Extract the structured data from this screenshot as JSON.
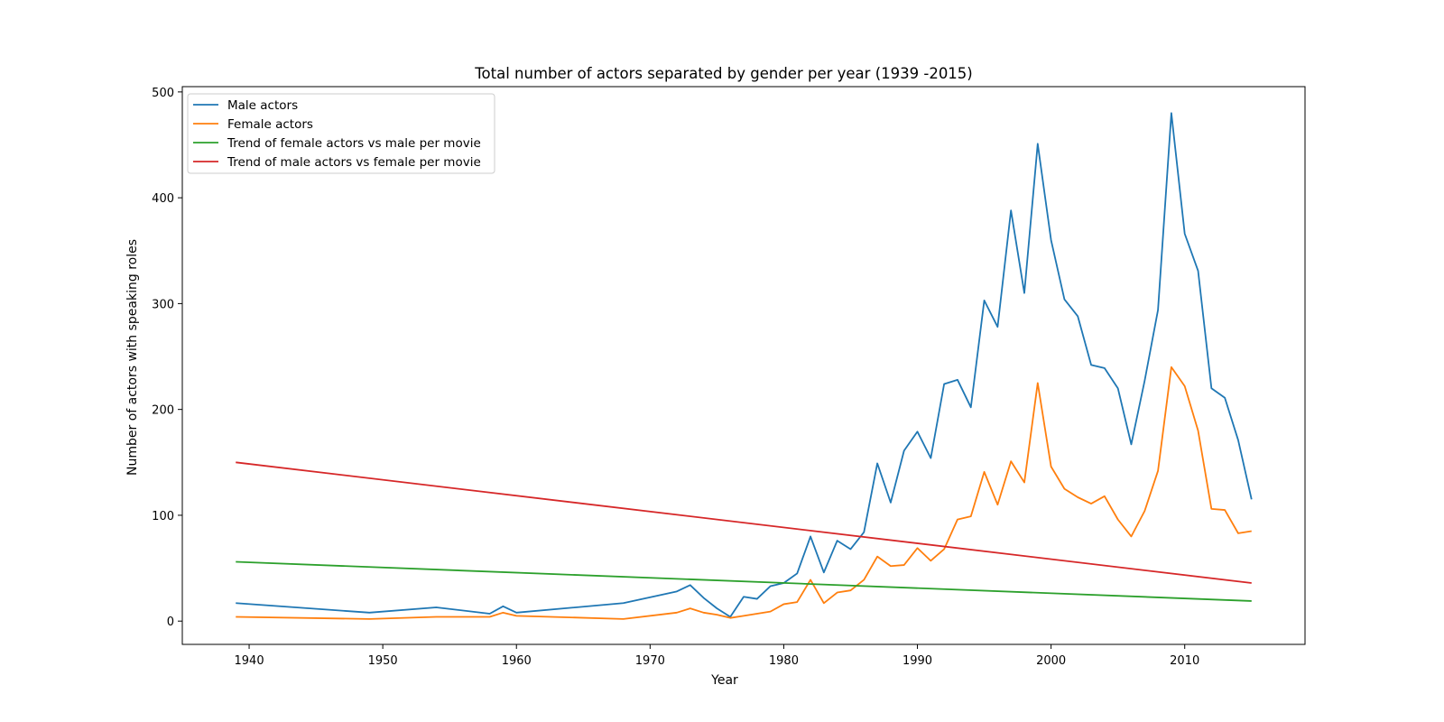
{
  "chart_data": {
    "type": "line",
    "title": "Total number of actors separated by gender per year (1939 -2015)",
    "xlabel": "Year",
    "ylabel": "Number of actors with speaking roles",
    "xlim": [
      1935,
      2019
    ],
    "ylim": [
      -22,
      505
    ],
    "xticks": [
      1940,
      1950,
      1960,
      1970,
      1980,
      1990,
      2000,
      2010
    ],
    "yticks": [
      0,
      100,
      200,
      300,
      400,
      500
    ],
    "grid": false,
    "legend_position": "upper-left",
    "series": [
      {
        "name": " Male actors",
        "color": "#1f77b4",
        "points": [
          [
            1939,
            17
          ],
          [
            1949,
            8
          ],
          [
            1954,
            13
          ],
          [
            1958,
            7
          ],
          [
            1959,
            14
          ],
          [
            1960,
            8
          ],
          [
            1968,
            17
          ],
          [
            1972,
            28
          ],
          [
            1973,
            34
          ],
          [
            1974,
            22
          ],
          [
            1975,
            12
          ],
          [
            1976,
            4
          ],
          [
            1977,
            23
          ],
          [
            1978,
            21
          ],
          [
            1979,
            33
          ],
          [
            1980,
            36
          ],
          [
            1981,
            45
          ],
          [
            1982,
            80
          ],
          [
            1983,
            46
          ],
          [
            1984,
            76
          ],
          [
            1985,
            68
          ],
          [
            1986,
            84
          ],
          [
            1987,
            149
          ],
          [
            1988,
            112
          ],
          [
            1989,
            161
          ],
          [
            1990,
            179
          ],
          [
            1991,
            154
          ],
          [
            1992,
            224
          ],
          [
            1993,
            228
          ],
          [
            1994,
            202
          ],
          [
            1995,
            303
          ],
          [
            1996,
            278
          ],
          [
            1997,
            388
          ],
          [
            1998,
            310
          ],
          [
            1999,
            451
          ],
          [
            2000,
            360
          ],
          [
            2001,
            304
          ],
          [
            2002,
            288
          ],
          [
            2003,
            242
          ],
          [
            2004,
            239
          ],
          [
            2005,
            220
          ],
          [
            2006,
            167
          ],
          [
            2007,
            227
          ],
          [
            2008,
            294
          ],
          [
            2009,
            480
          ],
          [
            2010,
            366
          ],
          [
            2011,
            331
          ],
          [
            2012,
            220
          ],
          [
            2013,
            211
          ],
          [
            2014,
            171
          ],
          [
            2015,
            115
          ]
        ]
      },
      {
        "name": " Female actors",
        "color": "#ff7f0e",
        "points": [
          [
            1939,
            4
          ],
          [
            1949,
            2
          ],
          [
            1954,
            4
          ],
          [
            1958,
            4
          ],
          [
            1959,
            8
          ],
          [
            1960,
            5
          ],
          [
            1968,
            2
          ],
          [
            1972,
            8
          ],
          [
            1973,
            12
          ],
          [
            1974,
            8
          ],
          [
            1975,
            6
          ],
          [
            1976,
            3
          ],
          [
            1977,
            5
          ],
          [
            1978,
            7
          ],
          [
            1979,
            9
          ],
          [
            1980,
            16
          ],
          [
            1981,
            18
          ],
          [
            1982,
            39
          ],
          [
            1983,
            17
          ],
          [
            1984,
            27
          ],
          [
            1985,
            29
          ],
          [
            1986,
            39
          ],
          [
            1987,
            61
          ],
          [
            1988,
            52
          ],
          [
            1989,
            53
          ],
          [
            1990,
            69
          ],
          [
            1991,
            57
          ],
          [
            1992,
            68
          ],
          [
            1993,
            96
          ],
          [
            1994,
            99
          ],
          [
            1995,
            141
          ],
          [
            1996,
            110
          ],
          [
            1997,
            151
          ],
          [
            1998,
            131
          ],
          [
            1999,
            225
          ],
          [
            2000,
            146
          ],
          [
            2001,
            125
          ],
          [
            2002,
            117
          ],
          [
            2003,
            111
          ],
          [
            2004,
            118
          ],
          [
            2005,
            96
          ],
          [
            2006,
            80
          ],
          [
            2007,
            104
          ],
          [
            2008,
            142
          ],
          [
            2009,
            240
          ],
          [
            2010,
            222
          ],
          [
            2011,
            180
          ],
          [
            2012,
            106
          ],
          [
            2013,
            105
          ],
          [
            2014,
            83
          ],
          [
            2015,
            85
          ]
        ]
      },
      {
        "name": "Trend of female actors vs male per movie",
        "color": "#2ca02c",
        "points": [
          [
            1939,
            56
          ],
          [
            2015,
            19
          ]
        ]
      },
      {
        "name": "Trend of male actors vs female per movie",
        "color": "#d62728",
        "points": [
          [
            1939,
            150
          ],
          [
            2015,
            36
          ]
        ]
      }
    ]
  }
}
